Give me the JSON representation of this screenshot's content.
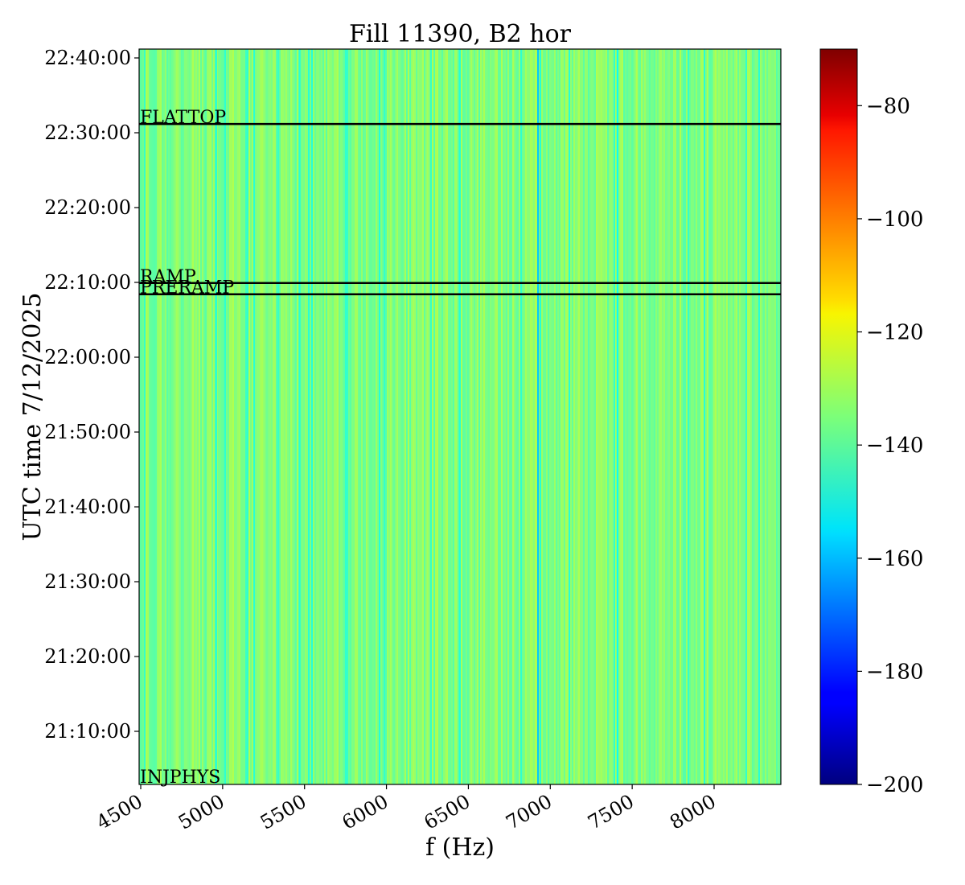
{
  "chart_data": {
    "type": "heatmap",
    "title": "Fill 11390, B2 hor",
    "xlabel": "f (Hz)",
    "ylabel": "UTC time 7/12/2025",
    "xlim": [
      4500,
      8400
    ],
    "x_ticks": [
      4500,
      5000,
      5500,
      6000,
      6500,
      7000,
      7500,
      8000
    ],
    "y_ticks": [
      "21:10:00",
      "21:20:00",
      "21:30:00",
      "21:40:00",
      "21:50:00",
      "22:00:00",
      "22:10:00",
      "22:20:00",
      "22:30:00",
      "22:40:00"
    ],
    "colorbar": {
      "colormap": "jet",
      "range": [
        -200,
        -70
      ],
      "ticks": [
        -80,
        -100,
        -120,
        -140,
        -160,
        -180,
        -200
      ],
      "tick_labels": [
        "−80",
        "−100",
        "−120",
        "−140",
        "−160",
        "−180",
        "−200"
      ]
    },
    "typical_level": -135,
    "level_range": [
      -142,
      -128
    ],
    "notable_lines": [
      {
        "f": 6925,
        "level": -158
      },
      {
        "f": 7410,
        "level": -150
      },
      {
        "f": 4960,
        "level": -147
      },
      {
        "f": 5470,
        "level": -146
      }
    ],
    "events": [
      {
        "label": "FLATTOP",
        "time": "22:31:10"
      },
      {
        "label": "RAMP",
        "time": "22:09:55"
      },
      {
        "label": "PRERAMP",
        "time": "22:08:25"
      },
      {
        "label": "INJPHYS",
        "time": "21:03:00"
      }
    ]
  }
}
